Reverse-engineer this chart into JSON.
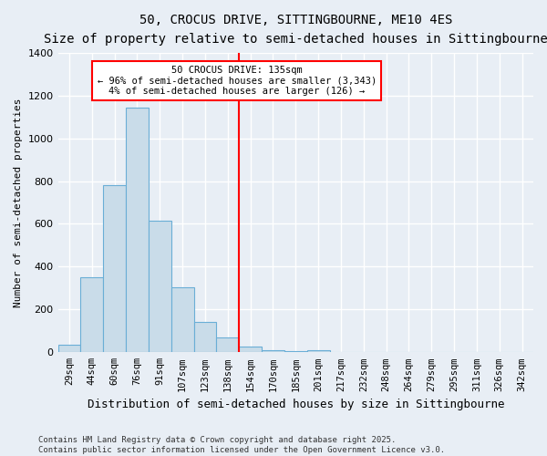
{
  "title": "50, CROCUS DRIVE, SITTINGBOURNE, ME10 4ES",
  "subtitle": "Size of property relative to semi-detached houses in Sittingbourne",
  "xlabel": "Distribution of semi-detached houses by size in Sittingbourne",
  "ylabel": "Number of semi-detached properties",
  "footnote": "Contains HM Land Registry data © Crown copyright and database right 2025.\nContains public sector information licensed under the Open Government Licence v3.0.",
  "categories": [
    "29sqm",
    "44sqm",
    "60sqm",
    "76sqm",
    "91sqm",
    "107sqm",
    "123sqm",
    "138sqm",
    "154sqm",
    "170sqm",
    "185sqm",
    "201sqm",
    "217sqm",
    "232sqm",
    "248sqm",
    "264sqm",
    "279sqm",
    "295sqm",
    "311sqm",
    "326sqm",
    "342sqm"
  ],
  "values": [
    35,
    350,
    780,
    1145,
    615,
    305,
    140,
    70,
    25,
    10,
    5,
    10,
    0,
    0,
    0,
    0,
    0,
    0,
    0,
    0,
    0
  ],
  "bar_color": "#c9dce9",
  "bar_edge_color": "#6aaed6",
  "background_color": "#e8eef5",
  "red_line_index": 7.5,
  "annotation_title": "50 CROCUS DRIVE: 135sqm",
  "annotation_line1": "← 96% of semi-detached houses are smaller (3,343)",
  "annotation_line2": "4% of semi-detached houses are larger (126) →",
  "ylim": [
    0,
    1400
  ],
  "yticks": [
    0,
    200,
    400,
    600,
    800,
    1000,
    1200,
    1400
  ]
}
